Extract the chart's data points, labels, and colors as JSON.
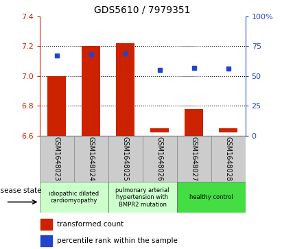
{
  "title": "GDS5610 / 7979351",
  "samples": [
    "GSM1648023",
    "GSM1648024",
    "GSM1648025",
    "GSM1648026",
    "GSM1648027",
    "GSM1648028"
  ],
  "bar_bottoms": [
    6.6,
    6.6,
    6.6,
    6.62,
    6.6,
    6.62
  ],
  "bar_tops": [
    7.0,
    7.2,
    7.22,
    6.65,
    6.78,
    6.65
  ],
  "percentile_ranks": [
    67,
    68,
    69,
    55,
    57,
    56
  ],
  "ylim_left": [
    6.6,
    7.4
  ],
  "ylim_right": [
    0,
    100
  ],
  "yticks_left": [
    6.6,
    6.8,
    7.0,
    7.2,
    7.4
  ],
  "yticks_right": [
    0,
    25,
    50,
    75,
    100
  ],
  "bar_color": "#cc2200",
  "dot_color": "#2244cc",
  "grid_color": "#000000",
  "bg_color": "#ffffff",
  "plot_bg": "#ffffff",
  "sample_box_color": "#cccccc",
  "group_labels": [
    "idiopathic dilated\ncardiomyopathy",
    "pulmonary arterial\nhypertension with\nBMPR2 mutation",
    "healthy control"
  ],
  "group_starts": [
    0,
    2,
    4
  ],
  "group_ends": [
    2,
    4,
    6
  ],
  "group_colors": [
    "#ccffcc",
    "#ccffcc",
    "#44dd44"
  ],
  "disease_state_label": "disease state",
  "left_axis_color": "#cc2200",
  "right_axis_color": "#2244cc",
  "legend_red_label": "transformed count",
  "legend_blue_label": "percentile rank within the sample"
}
